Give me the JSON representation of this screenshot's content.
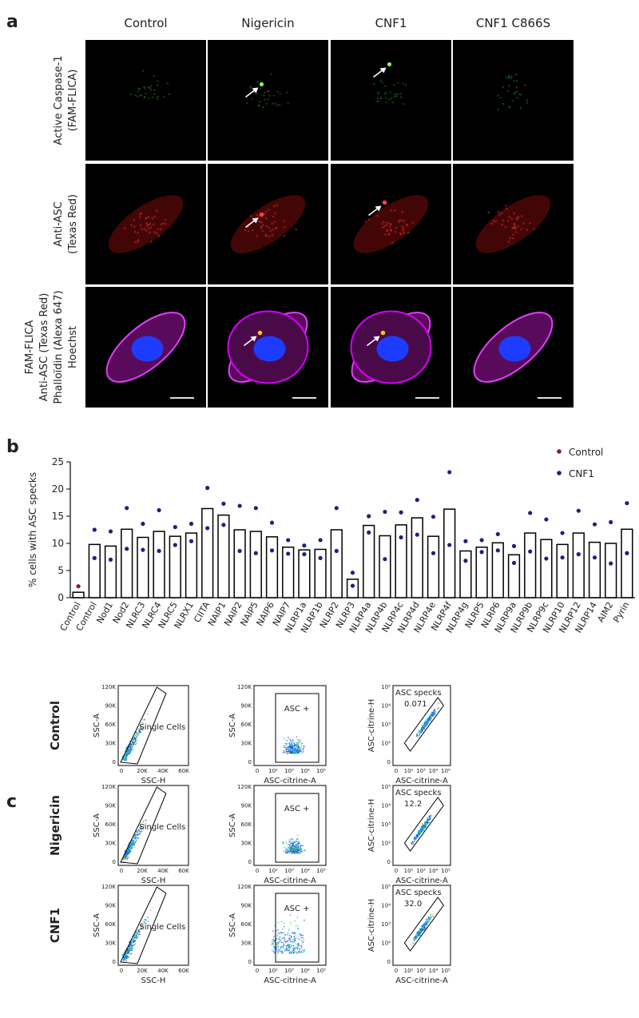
{
  "panel_a": {
    "letter": "a",
    "columns": [
      "Control",
      "Nigericin",
      "CNF1",
      "CNF1 C866S"
    ],
    "row_labels": [
      [
        "Active Caspase-1",
        "(FAM-FLICA)"
      ],
      [
        "Anti-ASC",
        "(Texas Red)"
      ],
      [
        "FAM-FLICA",
        "Anti-ASC (Texas Red)",
        "Phalloïdin (Alexa 647)",
        "Hoechst"
      ]
    ]
  },
  "panel_b": {
    "letter": "b"
  },
  "chart_data": {
    "type": "bar",
    "y_label": "% cells with ASC specks",
    "categories": [
      "Control",
      "Control",
      "Nod1",
      "Nod2",
      "NLRC3",
      "NLRC4",
      "NLRC5",
      "NLRX1",
      "CIITA",
      "NAIP1",
      "NAIP2",
      "NAIP5",
      "NAIP6",
      "NAIP7",
      "NLRP1a",
      "NLRP1b",
      "NLRP2",
      "NLRP3",
      "NLRP4a",
      "NLRP4b",
      "NLRP4c",
      "NLRP4d",
      "NLRP4e",
      "NLRP4f",
      "NLRP4g",
      "NLRP5",
      "NLRP6",
      "NLRP9a",
      "NLRP9b",
      "NLRP9c",
      "NLRP10",
      "NLRP12",
      "NLRP14",
      "AIM2",
      "Pyrin"
    ],
    "values": [
      1,
      9.8,
      9.5,
      12.6,
      11.1,
      12.2,
      11.3,
      11.9,
      16.4,
      15.2,
      12.5,
      12.2,
      11.2,
      9.3,
      8.8,
      8.9,
      12.5,
      3.4,
      13.3,
      11.4,
      13.4,
      14.7,
      11.3,
      16.3,
      8.6,
      9.3,
      10.1,
      7.9,
      11.9,
      10.7,
      9.8,
      11.9,
      10.2,
      10.0,
      12.6
    ],
    "bar_color": "#000000",
    "series": [
      {
        "name": "Control",
        "color": "#8b1a2b",
        "values": [
          [
            2.1
          ],
          null,
          null,
          null,
          null,
          null,
          null,
          null,
          null,
          null,
          null,
          null,
          null,
          null,
          null,
          null,
          null,
          null,
          null,
          null,
          null,
          null,
          null,
          null,
          null,
          null,
          null,
          null,
          null,
          null,
          null,
          null,
          null,
          null,
          null
        ]
      },
      {
        "name": "CNF1",
        "color": "#1a237e",
        "values": [
          null,
          [
            12.5,
            7.3
          ],
          [
            12.2,
            7.0
          ],
          [
            16.5,
            9.0
          ],
          [
            13.6,
            8.8
          ],
          [
            16.1,
            8.6
          ],
          [
            13.0,
            9.7
          ],
          [
            13.6,
            10.4
          ],
          [
            20.2,
            12.8
          ],
          [
            17.3,
            13.4
          ],
          [
            16.9,
            8.6
          ],
          [
            16.5,
            8.2
          ],
          [
            13.8,
            8.7
          ],
          [
            10.6,
            8.1
          ],
          [
            9.6,
            8.0
          ],
          [
            10.6,
            7.3
          ],
          [
            16.5,
            8.6
          ],
          [
            4.6,
            2.2
          ],
          [
            15.0,
            12.0
          ],
          [
            15.8,
            7.1
          ],
          [
            15.7,
            11.1
          ],
          [
            18.0,
            11.6
          ],
          [
            14.9,
            8.2
          ],
          [
            23.1,
            9.7
          ],
          [
            10.4,
            6.8
          ],
          [
            10.6,
            8.4
          ],
          [
            11.7,
            8.7
          ],
          [
            9.5,
            6.4
          ],
          [
            15.6,
            8.5
          ],
          [
            14.4,
            7.2
          ],
          [
            11.9,
            7.4
          ],
          [
            16.0,
            8.0
          ],
          [
            13.5,
            7.4
          ],
          [
            13.9,
            6.3
          ],
          [
            17.4,
            8.2
          ]
        ]
      }
    ],
    "ylim": [
      0,
      25
    ],
    "yticks": [
      0,
      5,
      10,
      15,
      20,
      25
    ],
    "legend": "top-right"
  },
  "panel_c": {
    "letter": "c",
    "rows": [
      "Control",
      "Nigericin",
      "CNF1"
    ],
    "plots": [
      {
        "x_label": "SSC-H",
        "y_label": "SSC-A",
        "gate": "Single Cells",
        "xticks": [
          "0",
          "20K",
          "40K",
          "60K"
        ],
        "yticks": [
          "120K",
          "90K",
          "60K",
          "30K",
          "0"
        ]
      },
      {
        "x_label": "ASC-citrine-A",
        "y_label": "SSC-A",
        "gate": "ASC +",
        "xticks": [
          "0",
          "10²",
          "10³",
          "10⁴",
          "10⁵"
        ],
        "yticks": [
          "120K",
          "90K",
          "60K",
          "30K",
          "0"
        ]
      },
      {
        "x_label": "ASC-citrine-A",
        "y_label": "ASC-citrine-H",
        "gate": "ASC specks",
        "xticks": [
          "0",
          "10²",
          "10³",
          "10⁴",
          "10⁵"
        ],
        "yticks": [
          "10⁵",
          "10⁴",
          "10³",
          "10²",
          "0"
        ]
      }
    ],
    "speck_values": [
      "0.071",
      "12.2",
      "32.0"
    ]
  }
}
